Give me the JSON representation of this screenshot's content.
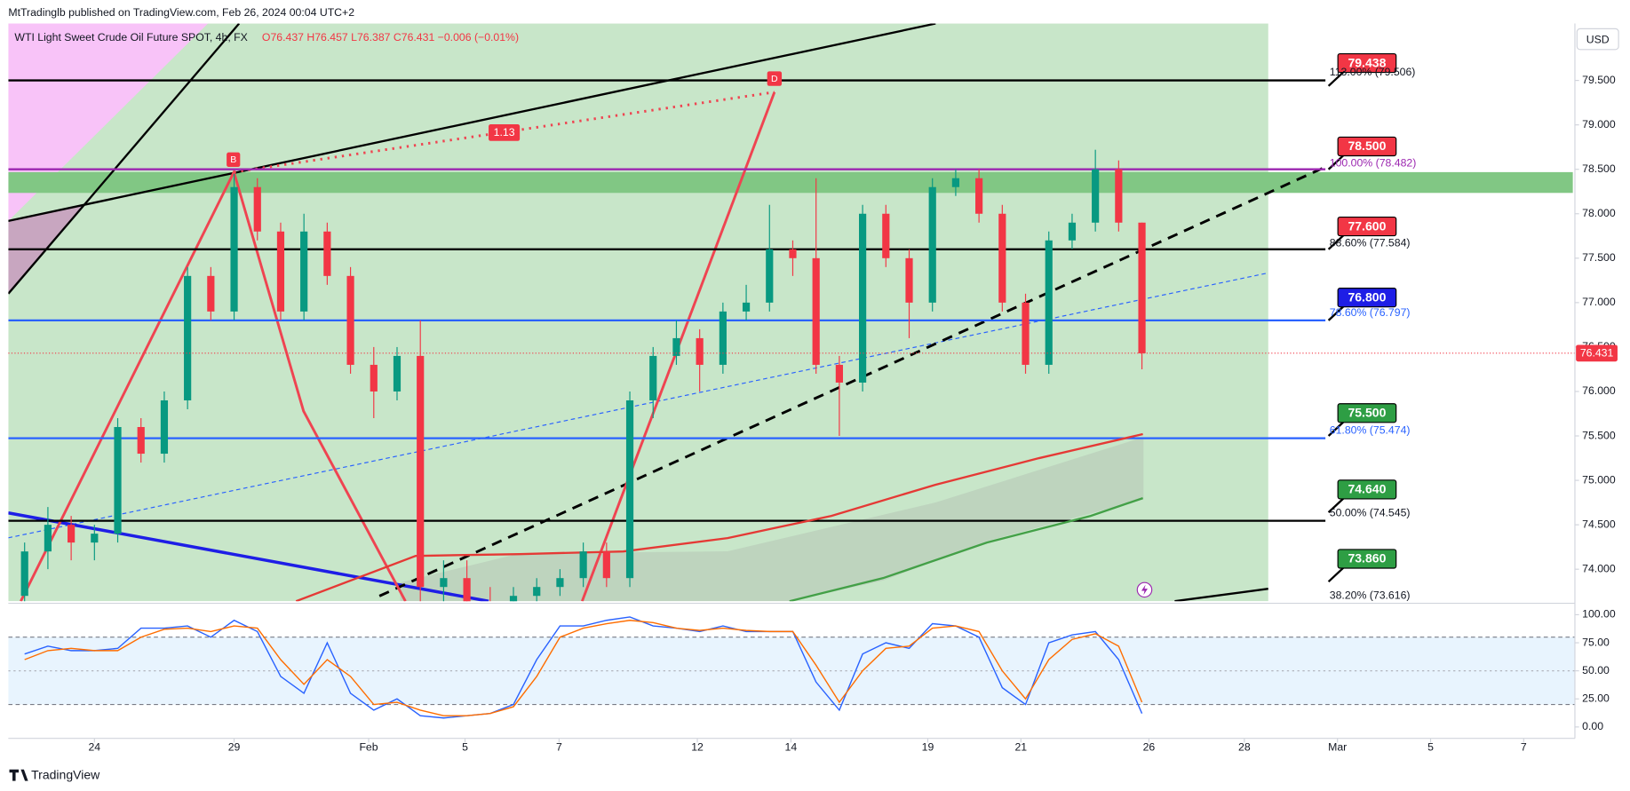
{
  "chart_data": {
    "type": "candlestick",
    "publisher": "MtTradinglb published on TradingView.com, Feb 26, 2024 00:04 UTC+2",
    "title": "WTI Light Sweet Crude Oil Future SPOT, 4h, FX",
    "ohlc": "O76.437 H76.457 L76.387 C76.431 −0.006 (−0.01%)",
    "currency": "USD",
    "brand": "TradingView",
    "pattern_labels": [
      "B",
      "D",
      "1.13"
    ],
    "xlim": [
      -1.85,
      31.8
    ],
    "xticks": [
      {
        "value": 0,
        "label": "24"
      },
      {
        "value": 3.0,
        "label": "29"
      },
      {
        "value": 5.89,
        "label": "Feb"
      },
      {
        "value": 7.96,
        "label": "5"
      },
      {
        "value": 9.98,
        "label": "7"
      },
      {
        "value": 12.95,
        "label": "12"
      },
      {
        "value": 14.96,
        "label": "14"
      },
      {
        "value": 17.9,
        "label": "19"
      },
      {
        "value": 19.9,
        "label": "21"
      },
      {
        "value": 22.65,
        "label": "26"
      },
      {
        "value": 24.7,
        "label": "28"
      },
      {
        "value": 26.7,
        "label": "Mar"
      },
      {
        "value": 28.7,
        "label": "5"
      },
      {
        "value": 30.7,
        "label": "7"
      }
    ],
    "ylim": [
      73.64,
      80.14
    ],
    "yticks": [
      {
        "value": 74,
        "label": "74.000"
      },
      {
        "value": 74.5,
        "label": "74.500"
      },
      {
        "value": 75,
        "label": "75.000"
      },
      {
        "value": 75.5,
        "label": "75.500"
      },
      {
        "value": 76,
        "label": "76.000"
      },
      {
        "value": 76.5,
        "label": "76.500"
      },
      {
        "value": 77,
        "label": "77.000"
      },
      {
        "value": 77.5,
        "label": "77.500"
      },
      {
        "value": 78,
        "label": "78.000"
      },
      {
        "value": 78.5,
        "label": "78.500"
      },
      {
        "value": 79,
        "label": "79.000"
      },
      {
        "value": 79.5,
        "label": "79.500"
      }
    ],
    "up_color": "#089981",
    "down_color": "#f23645",
    "x": [
      -1.5,
      -1.0,
      -0.5,
      0.0,
      0.5,
      1.0,
      1.5,
      2.0,
      2.5,
      3.0,
      3.5,
      4.0,
      4.5,
      5.0,
      5.5,
      6.0,
      6.5,
      7.0,
      7.5,
      8.0,
      8.5,
      9.0,
      9.5,
      10.0,
      10.5,
      11.0,
      11.5,
      12.0,
      12.5,
      13.0,
      13.5,
      14.0,
      14.5,
      15.0,
      15.5,
      16.0,
      16.5,
      17.0,
      17.5,
      18.0,
      18.5,
      19.0,
      19.5,
      20.0,
      20.5,
      21.0,
      21.5,
      22.0,
      22.5
    ],
    "open": [
      73.7,
      74.2,
      74.5,
      74.3,
      74.4,
      75.6,
      75.3,
      75.9,
      77.3,
      76.9,
      78.3,
      77.8,
      76.9,
      77.8,
      77.3,
      76.3,
      76.0,
      76.4,
      73.8,
      73.9,
      73.6,
      73.5,
      73.7,
      73.8,
      73.9,
      74.2,
      73.9,
      75.9,
      76.4,
      76.6,
      76.3,
      76.9,
      77.0,
      77.6,
      77.5,
      76.3,
      76.1,
      78.0,
      77.5,
      77.0,
      78.3,
      78.4,
      78.0,
      77.0,
      76.3,
      77.7,
      77.9,
      78.5,
      77.9
    ],
    "high": [
      74.3,
      74.7,
      74.6,
      74.5,
      75.7,
      75.7,
      76.0,
      77.4,
      77.4,
      78.45,
      78.4,
      77.9,
      78.0,
      77.9,
      77.4,
      76.5,
      76.5,
      76.8,
      74.1,
      74.1,
      73.8,
      73.8,
      73.9,
      74.0,
      74.3,
      74.3,
      76.0,
      76.5,
      76.8,
      76.7,
      77.0,
      77.2,
      78.1,
      77.7,
      78.4,
      76.4,
      78.1,
      78.1,
      77.6,
      78.4,
      78.5,
      78.5,
      78.1,
      77.1,
      77.8,
      78.0,
      78.72,
      78.6,
      77.9
    ],
    "low": [
      73.6,
      74.0,
      74.1,
      74.1,
      74.3,
      75.2,
      75.2,
      75.8,
      76.8,
      76.8,
      77.7,
      76.8,
      76.8,
      77.2,
      76.2,
      75.7,
      75.9,
      73.5,
      73.4,
      73.5,
      73.4,
      73.4,
      73.6,
      73.7,
      73.8,
      73.8,
      73.8,
      75.7,
      76.3,
      76.0,
      76.2,
      76.8,
      76.9,
      77.3,
      76.2,
      75.5,
      76.0,
      77.4,
      76.6,
      76.9,
      78.2,
      77.9,
      76.9,
      76.2,
      76.2,
      77.6,
      77.8,
      77.8,
      76.25
    ],
    "close": [
      74.2,
      74.5,
      74.3,
      74.4,
      75.6,
      75.3,
      75.9,
      77.3,
      76.9,
      78.3,
      77.8,
      76.9,
      77.8,
      77.3,
      76.3,
      76.0,
      76.4,
      73.8,
      73.9,
      73.6,
      73.5,
      73.7,
      73.8,
      73.9,
      74.2,
      73.9,
      75.9,
      76.4,
      76.6,
      76.3,
      76.9,
      77.0,
      77.6,
      77.5,
      76.3,
      76.1,
      78.0,
      77.5,
      77.0,
      78.3,
      78.4,
      78.0,
      77.0,
      76.3,
      77.7,
      77.9,
      78.5,
      77.9,
      76.43
    ],
    "last": {
      "value": 76.431,
      "label": "76.431"
    },
    "moving_averages": [
      {
        "color": "#e53935",
        "x": [
          4.33,
          6.9,
          9.13,
          11.36,
          13.6,
          15.83,
          18.06,
          20.29,
          22.52
        ],
        "values": [
          73.64,
          74.15,
          74.17,
          74.2,
          74.35,
          74.6,
          74.95,
          75.25,
          75.52
        ]
      },
      {
        "color": "#43a047",
        "x": [
          14.93,
          16.94,
          19.17,
          21.4,
          22.52
        ],
        "values": [
          73.64,
          73.9,
          74.3,
          74.6,
          74.8
        ]
      }
    ],
    "hlines": [
      {
        "value": 79.5,
        "color": "#000000"
      },
      {
        "value": 78.5,
        "color": "#9c27b0"
      },
      {
        "value": 77.6,
        "color": "#000000"
      },
      {
        "value": 76.8,
        "color": "#2962ff"
      },
      {
        "value": 75.474,
        "color": "#2962ff"
      },
      {
        "value": 74.545,
        "color": "#000000"
      }
    ],
    "levels": [
      {
        "value": 79.438,
        "label": "79.438",
        "color": "#f23645"
      },
      {
        "value": 78.5,
        "label": "78.500",
        "color": "#f23645"
      },
      {
        "value": 77.6,
        "label": "77.600",
        "color": "#f23645"
      },
      {
        "value": 76.8,
        "label": "76.800",
        "color": "#1e1ee6"
      },
      {
        "value": 75.5,
        "label": "75.500",
        "color": "#2e9e44"
      },
      {
        "value": 74.64,
        "label": "74.640",
        "color": "#2e9e44"
      },
      {
        "value": 73.86,
        "label": "73.860",
        "color": "#2e9e44"
      }
    ],
    "fib_labels": [
      {
        "value": 79.506,
        "label": "113.00% (79.506)",
        "color": "#131722"
      },
      {
        "value": 78.482,
        "label": "100.00% (78.482)",
        "color": "#9c27b0"
      },
      {
        "value": 77.584,
        "label": "88.60% (77.584)",
        "color": "#131722"
      },
      {
        "value": 76.797,
        "label": "78.60% (76.797)",
        "color": "#2962ff"
      },
      {
        "value": 75.474,
        "label": "61.80% (75.474)",
        "color": "#2962ff"
      },
      {
        "value": 74.545,
        "label": "50.00% (74.545)",
        "color": "#131722"
      },
      {
        "value": 73.616,
        "label": "38.20% (73.616)",
        "color": "#131722"
      }
    ],
    "oscillator": {
      "ylim": [
        -8.3,
        107.4
      ],
      "yticks": [
        {
          "value": 0,
          "label": "0.00"
        },
        {
          "value": 25,
          "label": "25.00"
        },
        {
          "value": 50,
          "label": "50.00"
        },
        {
          "value": 75,
          "label": "75.00"
        },
        {
          "value": 100,
          "label": "100.00"
        }
      ],
      "bands": [
        20,
        80
      ],
      "series": [
        {
          "color": "#2962ff",
          "values": [
            65,
            72,
            68,
            68,
            70,
            88,
            88,
            90,
            80,
            95,
            85,
            45,
            30,
            75,
            30,
            15,
            25,
            10,
            8,
            10,
            12,
            20,
            60,
            90,
            90,
            95,
            98,
            90,
            88,
            85,
            90,
            85,
            85,
            85,
            40,
            15,
            65,
            75,
            70,
            92,
            90,
            80,
            35,
            20,
            75,
            82,
            85,
            60,
            12
          ]
        },
        {
          "color": "#ff6d00",
          "values": [
            60,
            68,
            70,
            68,
            68,
            80,
            87,
            88,
            85,
            90,
            88,
            60,
            38,
            60,
            45,
            20,
            22,
            15,
            10,
            10,
            12,
            18,
            45,
            80,
            88,
            92,
            95,
            93,
            88,
            86,
            88,
            86,
            85,
            85,
            55,
            22,
            50,
            70,
            72,
            88,
            90,
            85,
            50,
            25,
            60,
            78,
            83,
            72,
            22
          ]
        }
      ]
    }
  }
}
